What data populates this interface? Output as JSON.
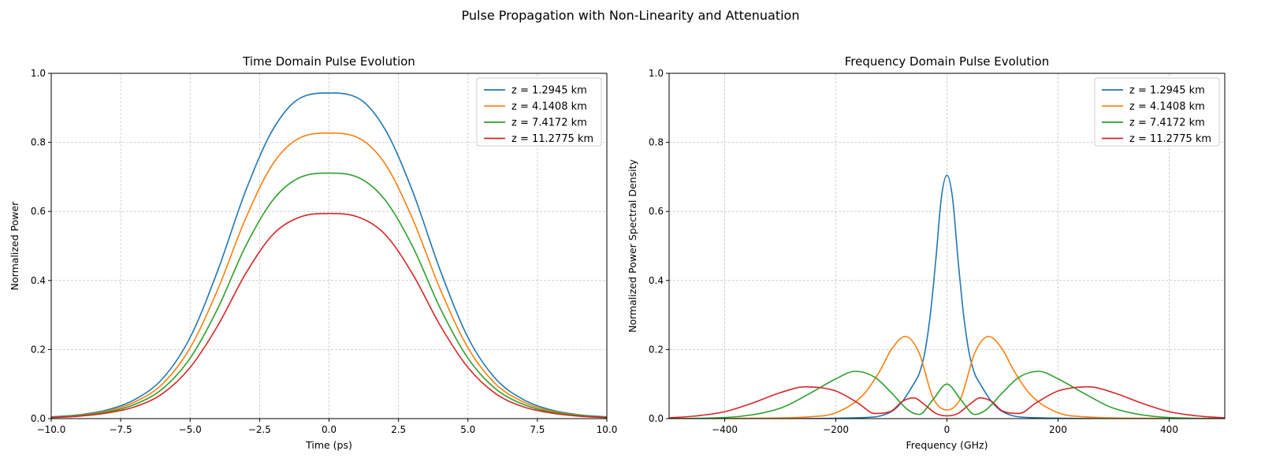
{
  "figure": {
    "title": "Pulse Propagation with Non-Linearity and Attenuation"
  },
  "legend_labels": [
    "z = 1.2945 km",
    "z = 4.1408 km",
    "z = 7.4172 km",
    "z = 11.2775 km"
  ],
  "colors": [
    "#1f77b4",
    "#ff7f0e",
    "#2ca02c",
    "#d62728"
  ],
  "chart_data": [
    {
      "type": "line",
      "title": "Time Domain Pulse Evolution",
      "xlabel": "Time (ps)",
      "ylabel": "Normalized Power",
      "xlim": [
        -10,
        10
      ],
      "ylim": [
        0,
        1
      ],
      "xticks": [
        -10,
        -7.5,
        -5,
        -2.5,
        0,
        2.5,
        5,
        7.5,
        10
      ],
      "xtick_labels": [
        "−10.0",
        "−7.5",
        "−5.0",
        "−2.5",
        "0.0",
        "2.5",
        "5.0",
        "7.5",
        "10.0"
      ],
      "yticks": [
        0,
        0.2,
        0.4,
        0.6,
        0.8,
        1.0
      ],
      "ytick_labels": [
        "0.0",
        "0.2",
        "0.4",
        "0.6",
        "0.8",
        "1.0"
      ],
      "grid": true,
      "legend": "top-right",
      "series": [
        {
          "name": "z = 1.2945 km",
          "x": [
            -10,
            -9,
            -8,
            -7,
            -6,
            -5,
            -4,
            -3,
            -2,
            -1,
            0,
            1,
            2,
            3,
            4,
            5,
            6,
            7,
            8,
            9,
            10
          ],
          "values": [
            0.005,
            0.011,
            0.025,
            0.055,
            0.115,
            0.235,
            0.43,
            0.66,
            0.84,
            0.93,
            0.943,
            0.93,
            0.84,
            0.66,
            0.43,
            0.235,
            0.115,
            0.055,
            0.025,
            0.011,
            0.005
          ]
        },
        {
          "name": "z = 4.1408 km",
          "x": [
            -10,
            -9,
            -8,
            -7,
            -6,
            -5,
            -4,
            -3,
            -2,
            -1,
            0,
            1,
            2,
            3,
            4,
            5,
            6,
            7,
            8,
            9,
            10
          ],
          "values": [
            0.004,
            0.01,
            0.022,
            0.048,
            0.1,
            0.205,
            0.375,
            0.58,
            0.74,
            0.815,
            0.827,
            0.815,
            0.74,
            0.58,
            0.375,
            0.205,
            0.1,
            0.048,
            0.022,
            0.01,
            0.004
          ]
        },
        {
          "name": "z = 7.4172 km",
          "x": [
            -10,
            -9,
            -8,
            -7,
            -6,
            -5,
            -4,
            -3,
            -2,
            -1,
            0,
            1,
            2,
            3,
            4,
            5,
            6,
            7,
            8,
            9,
            10
          ],
          "values": [
            0.004,
            0.009,
            0.019,
            0.041,
            0.086,
            0.175,
            0.32,
            0.5,
            0.635,
            0.7,
            0.711,
            0.7,
            0.635,
            0.5,
            0.32,
            0.175,
            0.086,
            0.041,
            0.019,
            0.009,
            0.004
          ]
        },
        {
          "name": "z = 11.2775 km",
          "x": [
            -10,
            -9,
            -8,
            -7,
            -6,
            -5,
            -4,
            -3,
            -2,
            -1,
            0,
            1,
            2,
            3,
            4,
            5,
            6,
            7,
            8,
            9,
            10
          ],
          "values": [
            0.003,
            0.007,
            0.016,
            0.034,
            0.072,
            0.148,
            0.27,
            0.42,
            0.535,
            0.585,
            0.594,
            0.585,
            0.535,
            0.42,
            0.27,
            0.148,
            0.072,
            0.034,
            0.016,
            0.007,
            0.003
          ]
        }
      ]
    },
    {
      "type": "line",
      "title": "Frequency Domain Pulse Evolution",
      "xlabel": "Frequency (GHz)",
      "ylabel": "Normalized Power Spectral Density",
      "xlim": [
        -500,
        500
      ],
      "ylim": [
        0,
        1
      ],
      "xticks": [
        -400,
        -200,
        0,
        200,
        400
      ],
      "xtick_labels": [
        "−400",
        "−200",
        "0",
        "200",
        "400"
      ],
      "yticks": [
        0,
        0.2,
        0.4,
        0.6,
        0.8,
        1.0
      ],
      "ytick_labels": [
        "0.0",
        "0.2",
        "0.4",
        "0.6",
        "0.8",
        "1.0"
      ],
      "grid": true,
      "legend": "top-right",
      "series": [
        {
          "name": "z = 1.2945 km",
          "x": [
            -500,
            -300,
            -150,
            -100,
            -80,
            -60,
            -50,
            -40,
            -30,
            -20,
            -10,
            0,
            10,
            20,
            30,
            40,
            50,
            60,
            80,
            100,
            150,
            300,
            500
          ],
          "values": [
            0,
            0,
            0.003,
            0.02,
            0.05,
            0.1,
            0.13,
            0.19,
            0.3,
            0.46,
            0.64,
            0.705,
            0.64,
            0.46,
            0.3,
            0.19,
            0.13,
            0.1,
            0.05,
            0.02,
            0.003,
            0,
            0
          ]
        },
        {
          "name": "z = 4.1408 km",
          "x": [
            -500,
            -350,
            -250,
            -200,
            -150,
            -120,
            -100,
            -75,
            -50,
            -25,
            0,
            25,
            50,
            75,
            100,
            120,
            150,
            200,
            250,
            350,
            500
          ],
          "values": [
            0,
            0.001,
            0.005,
            0.017,
            0.07,
            0.14,
            0.2,
            0.238,
            0.19,
            0.06,
            0.025,
            0.06,
            0.19,
            0.238,
            0.2,
            0.14,
            0.07,
            0.017,
            0.005,
            0.001,
            0
          ]
        },
        {
          "name": "z = 7.4172 km",
          "x": [
            -500,
            -400,
            -300,
            -250,
            -200,
            -165,
            -130,
            -100,
            -70,
            -50,
            -25,
            0,
            25,
            50,
            70,
            100,
            130,
            165,
            200,
            250,
            300,
            400,
            500
          ],
          "values": [
            0,
            0.003,
            0.03,
            0.07,
            0.115,
            0.137,
            0.12,
            0.075,
            0.025,
            0.012,
            0.055,
            0.1,
            0.055,
            0.012,
            0.025,
            0.075,
            0.12,
            0.137,
            0.115,
            0.07,
            0.03,
            0.003,
            0
          ]
        },
        {
          "name": "z = 11.2775 km",
          "x": [
            -500,
            -450,
            -400,
            -350,
            -300,
            -255,
            -200,
            -160,
            -130,
            -100,
            -80,
            -60,
            -40,
            -20,
            0,
            20,
            40,
            60,
            80,
            100,
            130,
            160,
            200,
            255,
            300,
            350,
            400,
            450,
            500
          ],
          "values": [
            0.002,
            0.008,
            0.02,
            0.045,
            0.075,
            0.092,
            0.08,
            0.045,
            0.015,
            0.022,
            0.05,
            0.06,
            0.04,
            0.015,
            0.008,
            0.015,
            0.04,
            0.06,
            0.05,
            0.022,
            0.015,
            0.045,
            0.08,
            0.092,
            0.075,
            0.045,
            0.02,
            0.008,
            0.002
          ]
        }
      ]
    }
  ]
}
